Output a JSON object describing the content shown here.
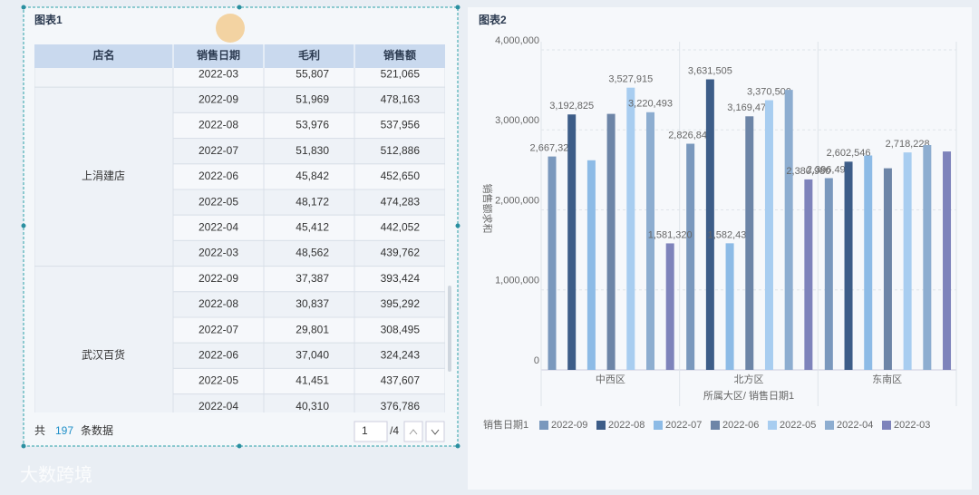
{
  "left_panel": {
    "title": "图表1"
  },
  "table": {
    "header": [
      "店名",
      "销售日期",
      "毛利",
      "销售额"
    ],
    "groups": [
      {
        "rows": [
          [
            "2022-03",
            "55,807",
            "521,065"
          ]
        ]
      },
      {
        "store": "上涓建店",
        "rows": [
          [
            "2022-09",
            "51,969",
            "478,163"
          ],
          [
            "2022-08",
            "53,976",
            "537,956"
          ],
          [
            "2022-07",
            "51,830",
            "512,886"
          ],
          [
            "2022-06",
            "45,842",
            "452,650"
          ],
          [
            "2022-05",
            "48,172",
            "474,283"
          ],
          [
            "2022-04",
            "45,412",
            "442,052"
          ],
          [
            "2022-03",
            "48,562",
            "439,762"
          ]
        ]
      },
      {
        "store": "武汉百货",
        "rows": [
          [
            "2022-09",
            "37,387",
            "393,424"
          ],
          [
            "2022-08",
            "30,837",
            "395,292"
          ],
          [
            "2022-07",
            "29,801",
            "308,495"
          ],
          [
            "2022-06",
            "37,040",
            "324,243"
          ],
          [
            "2022-05",
            "41,451",
            "437,607"
          ],
          [
            "2022-04",
            "40,310",
            "376,786"
          ]
        ]
      }
    ]
  },
  "footer": {
    "prefix": "共",
    "count": "197",
    "suffix": "条数据",
    "page": "1",
    "pages": "/4"
  },
  "watermark": "大数跨境",
  "chart_data": {
    "type": "bar",
    "title": "图表2",
    "y_label": "销售额求和",
    "x_label": "所属大区/ 销售日期1",
    "legend_title": "销售日期1",
    "legend": "bottom-left",
    "grid": true,
    "categories": [
      "中西区",
      "北方区",
      "东南区"
    ],
    "ylim": [
      0,
      4000000
    ],
    "yticks": [
      0,
      {
        "value": 1000000,
        "label": "1,000,000"
      },
      {
        "value": 2000000,
        "label": "2,000,000"
      },
      {
        "value": 3000000,
        "label": "3,000,000"
      },
      {
        "value": 4000000,
        "label": "4,000,000"
      }
    ],
    "series": [
      {
        "name": "2022-09",
        "color": "#7a98bd",
        "values": [
          2667321,
          2826845,
          2396492
        ],
        "value_labels": [
          "2,667,321",
          "2,826,845",
          "2,396,492"
        ]
      },
      {
        "name": "2022-08",
        "color": "#3d5d88",
        "values": [
          3192825,
          3631505,
          2602546
        ],
        "value_labels": [
          "3,192,825",
          "3,631,505",
          "2,602,546"
        ]
      },
      {
        "name": "2022-07",
        "color": "#8dbbe6",
        "values": [
          2620000,
          1582434,
          2680000
        ],
        "value_labels": [
          null,
          "1,582,434",
          null
        ]
      },
      {
        "name": "2022-06",
        "color": "#6d85a7",
        "values": [
          3200000,
          3169471,
          2520000
        ],
        "value_labels": [
          null,
          "3,169,471",
          null
        ]
      },
      {
        "name": "2022-05",
        "color": "#a8cdf0",
        "values": [
          3527915,
          3370500,
          2718228
        ],
        "value_labels": [
          "3,527,915",
          "3,370,500",
          "2,718,228"
        ]
      },
      {
        "name": "2022-04",
        "color": "#8dadd0",
        "values": [
          3220493,
          3500000,
          2810000
        ],
        "value_labels": [
          "3,220,493",
          null,
          null
        ]
      },
      {
        "name": "2022-03",
        "color": "#7e83bb",
        "values": [
          1581320,
          2380980,
          2730000
        ],
        "value_labels": [
          "1,581,320",
          "2,380,980",
          null
        ]
      }
    ]
  }
}
